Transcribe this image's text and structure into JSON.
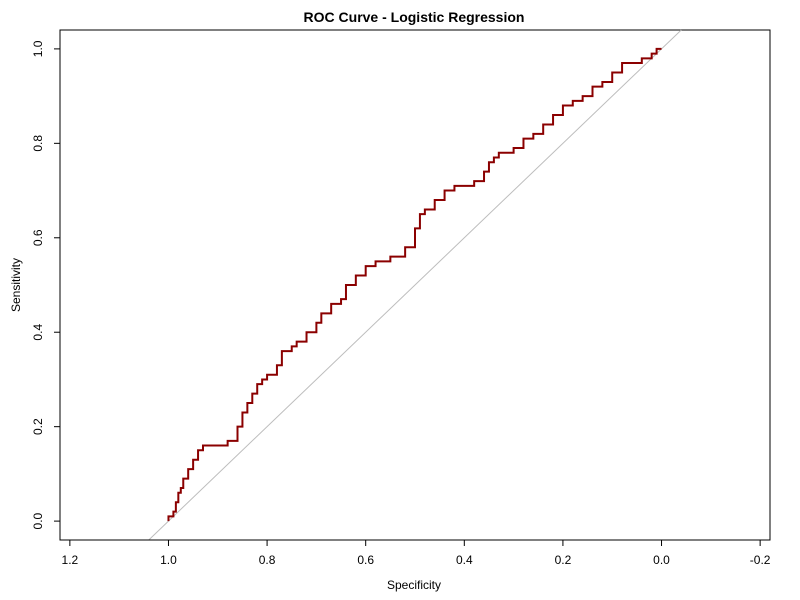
{
  "chart_data": {
    "type": "line",
    "title": "ROC Curve - Logistic Regression",
    "xlabel": "Specificity",
    "ylabel": "Sensitivity",
    "x_reversed": true,
    "xlim": [
      1.22,
      -0.22
    ],
    "ylim": [
      -0.04,
      1.04
    ],
    "x_ticks": [
      1.2,
      1.0,
      0.8,
      0.6,
      0.4,
      0.2,
      0.0,
      -0.2
    ],
    "x_tick_labels": [
      "1.2",
      "1.0",
      "0.8",
      "0.6",
      "0.4",
      "0.2",
      "0.0",
      "-0.2"
    ],
    "y_ticks": [
      0.0,
      0.2,
      0.4,
      0.6,
      0.8,
      1.0
    ],
    "y_tick_labels": [
      "0.0",
      "0.2",
      "0.4",
      "0.6",
      "0.8",
      "1.0"
    ],
    "grid": false,
    "legend": "none",
    "reference_line": {
      "from": [
        1.0,
        0.0
      ],
      "to": [
        0.0,
        1.0
      ],
      "color": "#bdbdbd"
    },
    "series": [
      {
        "color": "#8b0000",
        "specificity": [
          1.0,
          0.99,
          0.985,
          0.98,
          0.975,
          0.97,
          0.96,
          0.95,
          0.94,
          0.93,
          0.92,
          0.91,
          0.9,
          0.88,
          0.86,
          0.85,
          0.84,
          0.83,
          0.82,
          0.81,
          0.8,
          0.79,
          0.78,
          0.77,
          0.75,
          0.74,
          0.72,
          0.7,
          0.69,
          0.67,
          0.65,
          0.64,
          0.62,
          0.6,
          0.58,
          0.55,
          0.52,
          0.5,
          0.49,
          0.48,
          0.46,
          0.44,
          0.42,
          0.4,
          0.38,
          0.36,
          0.35,
          0.34,
          0.33,
          0.3,
          0.28,
          0.26,
          0.24,
          0.22,
          0.2,
          0.18,
          0.16,
          0.14,
          0.12,
          0.1,
          0.08,
          0.06,
          0.04,
          0.02,
          0.01,
          0.0
        ],
        "sensitivity": [
          0.0,
          0.01,
          0.02,
          0.04,
          0.06,
          0.07,
          0.09,
          0.11,
          0.13,
          0.15,
          0.16,
          0.16,
          0.16,
          0.16,
          0.17,
          0.2,
          0.23,
          0.25,
          0.27,
          0.29,
          0.3,
          0.31,
          0.31,
          0.33,
          0.36,
          0.37,
          0.38,
          0.4,
          0.42,
          0.44,
          0.46,
          0.47,
          0.5,
          0.52,
          0.54,
          0.55,
          0.56,
          0.58,
          0.62,
          0.65,
          0.66,
          0.68,
          0.7,
          0.71,
          0.71,
          0.72,
          0.74,
          0.76,
          0.77,
          0.78,
          0.79,
          0.81,
          0.82,
          0.84,
          0.86,
          0.88,
          0.89,
          0.9,
          0.92,
          0.93,
          0.95,
          0.97,
          0.97,
          0.98,
          0.99,
          1.0
        ]
      }
    ]
  }
}
